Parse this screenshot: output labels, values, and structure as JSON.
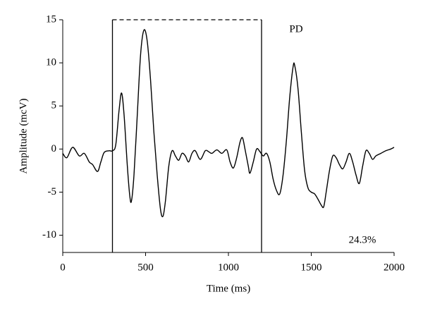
{
  "chart_data": {
    "type": "line",
    "xlabel": "Time (ms)",
    "ylabel": "Amplitude (mcV)",
    "annotations": [
      "PD",
      "24.3%"
    ],
    "xlim": [
      0,
      2000
    ],
    "xticks": [
      0,
      500,
      1000,
      1500,
      2000
    ],
    "ylim": [
      -12,
      15
    ],
    "yticks": [
      -10,
      -5,
      0,
      5,
      10,
      15
    ],
    "highlight": {
      "xstart": 300,
      "xend": 1200,
      "top": 15
    },
    "series": [
      {
        "color": "#000000",
        "x": [
          0,
          25,
          60,
          100,
          130,
          160,
          180,
          210,
          230,
          250,
          280,
          300,
          320,
          340,
          355,
          370,
          390,
          405,
          415,
          430,
          450,
          470,
          490,
          510,
          530,
          550,
          570,
          590,
          605,
          620,
          640,
          660,
          680,
          700,
          720,
          740,
          760,
          780,
          800,
          830,
          860,
          880,
          900,
          930,
          960,
          990,
          1010,
          1030,
          1050,
          1070,
          1085,
          1100,
          1120,
          1130,
          1150,
          1170,
          1190,
          1210,
          1230,
          1250,
          1270,
          1290,
          1310,
          1330,
          1350,
          1370,
          1390,
          1400,
          1420,
          1440,
          1460,
          1480,
          1500,
          1520,
          1540,
          1560,
          1575,
          1590,
          1610,
          1630,
          1650,
          1670,
          1690,
          1710,
          1730,
          1750,
          1770,
          1790,
          1810,
          1830,
          1850,
          1870,
          1890,
          1920,
          1950,
          1980,
          2000
        ],
        "values": [
          -0.5,
          -1.0,
          0.2,
          -0.8,
          -0.5,
          -1.5,
          -1.8,
          -2.6,
          -1.5,
          -0.4,
          -0.2,
          -0.2,
          0.5,
          4.5,
          6.5,
          4,
          -2,
          -5.5,
          -6,
          -3,
          4,
          11,
          13.8,
          12.5,
          8,
          2,
          -3,
          -7,
          -7.8,
          -6,
          -2,
          -0.2,
          -0.8,
          -1.3,
          -0.5,
          -0.8,
          -1.5,
          -0.5,
          -0.2,
          -1.2,
          -0.2,
          -0.3,
          -0.5,
          -0.1,
          -0.5,
          -0.1,
          -1.5,
          -2.2,
          -1,
          0.8,
          1.3,
          0,
          -2,
          -2.8,
          -1.5,
          0,
          -0.3,
          -0.8,
          -0.5,
          -1.5,
          -3.5,
          -4.8,
          -5.2,
          -3,
          1,
          6,
          9.5,
          9.7,
          7,
          2,
          -2.5,
          -4.5,
          -5,
          -5.2,
          -5.8,
          -6.5,
          -6.7,
          -5,
          -2.5,
          -0.8,
          -1,
          -1.8,
          -2.3,
          -1.5,
          -0.5,
          -1.5,
          -3,
          -4,
          -2,
          -0.2,
          -0.5,
          -1.2,
          -0.8,
          -0.5,
          -0.2,
          0,
          0.2
        ]
      }
    ]
  }
}
